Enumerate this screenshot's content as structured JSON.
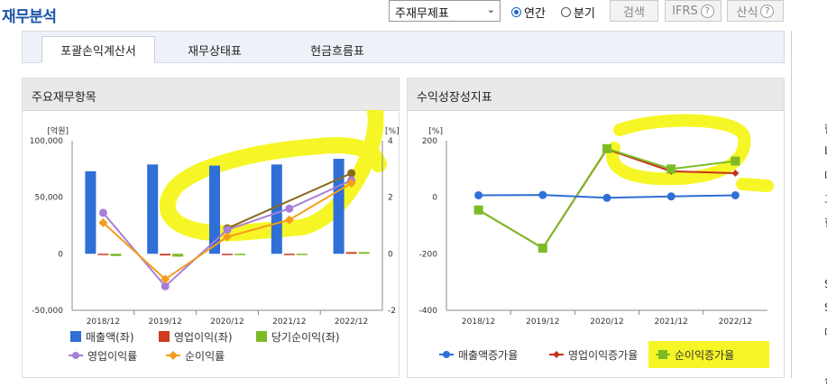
{
  "header": {
    "title": "재무분석",
    "select_value": "주재무제표",
    "radio_annual": "연간",
    "radio_quarter": "분기",
    "search_button": "검색",
    "ifrs_button": "IFRS",
    "formula_button": "산식",
    "help_glyph": "?"
  },
  "tabs": [
    "포괄손익계산서",
    "재무상태표",
    "현금흐름표"
  ],
  "left_panel": {
    "title": "주요재무항목"
  },
  "right_panel": {
    "title": "수익성장성지표"
  },
  "right_edge_chars": [
    "한",
    "L",
    "대",
    "그",
    "힌",
    "S",
    "S",
    "매",
    "산"
  ],
  "colors": {
    "revenue": "#2f6fd6",
    "operating_income": "#d23a1e",
    "net_income": "#7dbb26",
    "operating_margin": "#a77fd8",
    "net_margin": "#f59c1a",
    "revenue_growth": "#2f6fd6",
    "op_growth": "#c8301a",
    "net_growth": "#7dbb26",
    "highlight": "#f4f400"
  },
  "chart_data": [
    {
      "type": "bar",
      "title": "주요재무항목",
      "categories": [
        "2018/12",
        "2019/12",
        "2020/12",
        "2021/12",
        "2022/12"
      ],
      "y_left_unit": "[억원]",
      "y_right_unit": "[%]",
      "y_left_ticks": [
        "100,000",
        "50,000",
        "0",
        "-50,000"
      ],
      "y_right_ticks": [
        "4",
        "2",
        "0",
        "-2"
      ],
      "ylim_left": [
        -50000,
        100000
      ],
      "ylim_right": [
        -2,
        4
      ],
      "series": [
        {
          "name": "매출액(좌)",
          "kind": "bar",
          "axis": "left",
          "values": [
            73000,
            79000,
            78000,
            79000,
            84000
          ]
        },
        {
          "name": "영업이익(좌)",
          "kind": "bar",
          "axis": "left",
          "values": [
            -1000,
            -1500,
            -500,
            -1000,
            1500
          ]
        },
        {
          "name": "당기순이익(좌)",
          "kind": "bar",
          "axis": "left",
          "values": [
            -2000,
            -2500,
            -1000,
            -1000,
            1500
          ]
        },
        {
          "name": "영업이익률",
          "kind": "line",
          "axis": "right",
          "values": [
            1.45,
            -1.15,
            0.85,
            1.6,
            2.6
          ]
        },
        {
          "name": "순이익률",
          "kind": "line",
          "axis": "right",
          "values": [
            1.1,
            -0.9,
            0.6,
            1.2,
            2.5
          ]
        }
      ],
      "extra_line": {
        "axis": "right",
        "values": [
          null,
          null,
          0.9,
          null,
          2.85
        ]
      }
    },
    {
      "type": "line",
      "title": "수익성장성지표",
      "categories": [
        "2018/12",
        "2019/12",
        "2020/12",
        "2021/12",
        "2022/12"
      ],
      "y_unit": "[%]",
      "y_ticks": [
        "200",
        "0",
        "-200",
        "-400"
      ],
      "ylim": [
        -400,
        200
      ],
      "series": [
        {
          "name": "매출액증가율",
          "values": [
            7,
            8,
            -2,
            3,
            7
          ]
        },
        {
          "name": "영업이익증가율",
          "values": [
            -45,
            -180,
            170,
            92,
            85
          ]
        },
        {
          "name": "순이익증가율",
          "values": [
            -45,
            -180,
            172,
            100,
            128
          ]
        }
      ]
    }
  ]
}
